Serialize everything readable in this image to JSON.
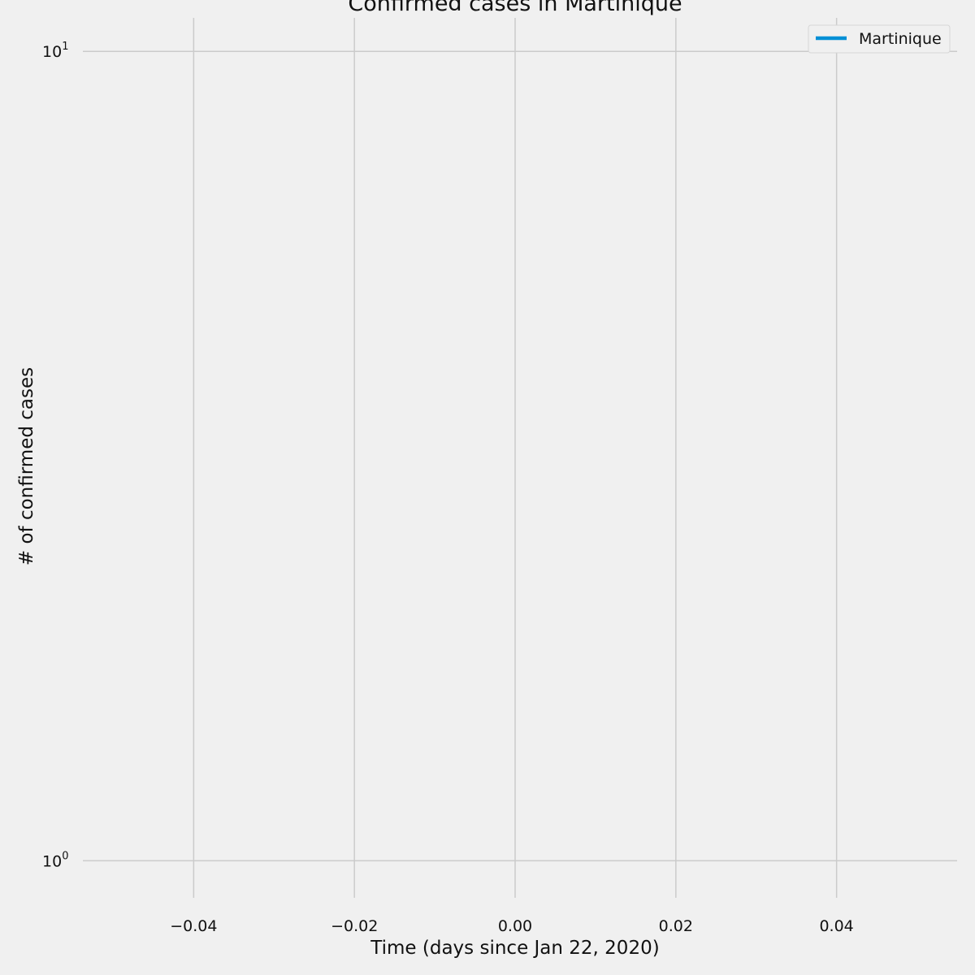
{
  "chart_data": {
    "type": "line",
    "title": "Confirmed cases in Martinique",
    "xlabel": "Time (days since Jan 22, 2020)",
    "ylabel": "# of confirmed cases",
    "xlim": [
      -0.055,
      0.055
    ],
    "ylim": [
      0.9,
      11
    ],
    "yscale": "log",
    "x_ticks": [
      {
        "value": -0.04,
        "label": "−0.04"
      },
      {
        "value": -0.02,
        "label": "−0.02"
      },
      {
        "value": 0.0,
        "label": "0.00"
      },
      {
        "value": 0.02,
        "label": "0.02"
      },
      {
        "value": 0.04,
        "label": "0.04"
      }
    ],
    "y_ticks": [
      {
        "value": 1,
        "base": "10",
        "exp": "0"
      },
      {
        "value": 10,
        "base": "10",
        "exp": "1"
      }
    ],
    "grid": true,
    "legend_position": "top-right",
    "series": [
      {
        "name": "Martinique",
        "color": "#008fd5",
        "x": [],
        "y": []
      }
    ]
  }
}
